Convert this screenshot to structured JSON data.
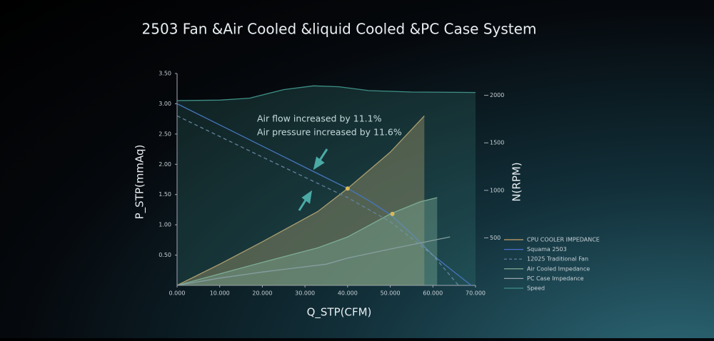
{
  "chart_data": {
    "type": "line",
    "title": "2503 Fan &Air Cooled &liquid Cooled &PC Case System",
    "x_label": "Q_STP(CFM)",
    "y_label": "P_STP(mmAq)",
    "y2_label": "N(RPM)",
    "annotations": [
      "Air flow increased by 11.1%",
      "Air pressure increased by 11.6%"
    ],
    "xlim": [
      0,
      70
    ],
    "ylim": [
      0,
      3.5
    ],
    "y2lim": [
      0,
      2230
    ],
    "xticks": [
      {
        "value": 0,
        "label": "0.000"
      },
      {
        "value": 10,
        "label": "10.000"
      },
      {
        "value": 20,
        "label": "20.000"
      },
      {
        "value": 30,
        "label": "30.000"
      },
      {
        "value": 40,
        "label": "40.000"
      },
      {
        "value": 50,
        "label": "50.000"
      },
      {
        "value": 60,
        "label": "60.000"
      },
      {
        "value": 70,
        "label": "70.000"
      }
    ],
    "yticks": [
      {
        "value": 0.5,
        "label": "0.50"
      },
      {
        "value": 1,
        "label": "1.00"
      },
      {
        "value": 1.5,
        "label": "1.50"
      },
      {
        "value": 2,
        "label": "2.00"
      },
      {
        "value": 2.5,
        "label": "2.50"
      },
      {
        "value": 3,
        "label": "3.00"
      },
      {
        "value": 3.5,
        "label": "3.50"
      }
    ],
    "y2ticks": [
      500,
      1000,
      1500,
      2000
    ],
    "series": [
      {
        "name": "CPU COOLER IMPEDANCE",
        "color": "#c9a36a",
        "style": "area",
        "x": [
          0,
          10,
          20,
          33,
          40,
          50,
          58
        ],
        "values": [
          0,
          0.35,
          0.72,
          1.22,
          1.6,
          2.2,
          2.8
        ]
      },
      {
        "name": "Squama 2503",
        "color": "#4a6fd0",
        "style": "line",
        "x": [
          0,
          10,
          20,
          30,
          40,
          45,
          50,
          55,
          60,
          65,
          69
        ],
        "values": [
          3.0,
          2.65,
          2.3,
          1.95,
          1.6,
          1.4,
          1.17,
          0.85,
          0.5,
          0.22,
          0
        ]
      },
      {
        "name": "12025 Traditional Fan",
        "color": "#6e7fa8",
        "style": "dashed",
        "x": [
          0,
          20,
          40,
          50,
          60,
          66
        ],
        "values": [
          2.8,
          2.12,
          1.45,
          1.05,
          0.5,
          0
        ]
      },
      {
        "name": "Air Cooled Impedance",
        "color": "#8fb59a",
        "style": "area",
        "x": [
          0,
          20,
          33,
          40,
          50,
          57,
          61
        ],
        "values": [
          0,
          0.38,
          0.62,
          0.8,
          1.18,
          1.38,
          1.45
        ]
      },
      {
        "name": "PC Case Impedance",
        "color": "#9aa3aa",
        "style": "line",
        "x": [
          0,
          10,
          20,
          35,
          40,
          50,
          64
        ],
        "values": [
          0,
          0.12,
          0.22,
          0.35,
          0.45,
          0.6,
          0.8
        ]
      },
      {
        "name": "Speed",
        "color": "#3f8f86",
        "style": "area",
        "axis": "y2",
        "x": [
          0,
          10,
          17,
          25,
          32,
          38,
          45,
          55,
          70
        ],
        "values": [
          1945,
          1950,
          1970,
          2060,
          2100,
          2090,
          2050,
          2035,
          2030
        ]
      }
    ],
    "points": [
      {
        "x": 40,
        "y": 1.6
      },
      {
        "x": 50.5,
        "y": 1.18
      }
    ],
    "point_color": "#d9b85a"
  }
}
